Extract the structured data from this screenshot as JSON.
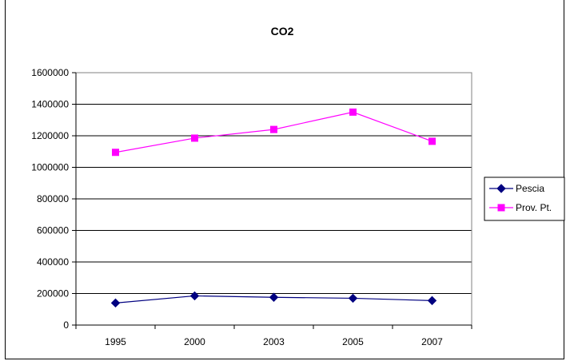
{
  "chart_data": {
    "type": "line",
    "title": "CO2",
    "xlabel": "",
    "ylabel": "",
    "categories": [
      "1995",
      "2000",
      "2003",
      "2005",
      "2007"
    ],
    "ylim": [
      0,
      1600000
    ],
    "yticks": [
      "0",
      "200000",
      "400000",
      "600000",
      "800000",
      "1000000",
      "1200000",
      "1400000",
      "1600000"
    ],
    "grid": true,
    "legend_position": "right",
    "series": [
      {
        "name": "Pescia",
        "color": "#000080",
        "marker": "diamond",
        "values": [
          140000,
          185000,
          176000,
          170000,
          155000
        ]
      },
      {
        "name": "Prov. Pt.",
        "color": "#FF00FF",
        "marker": "square",
        "values": [
          1095000,
          1185000,
          1240000,
          1350000,
          1165000
        ]
      }
    ]
  }
}
